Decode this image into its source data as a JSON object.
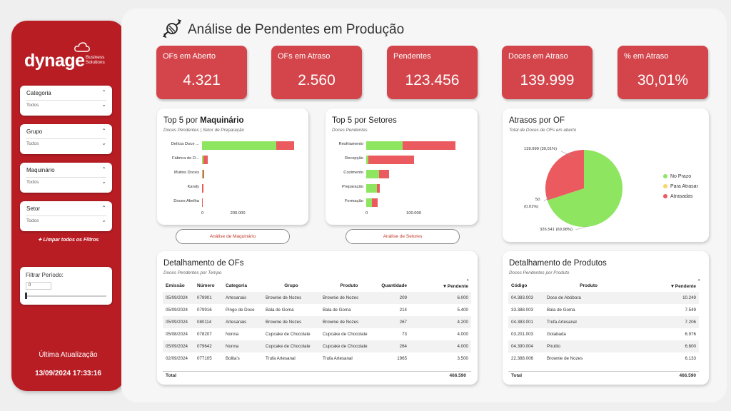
{
  "brand": {
    "name": "dynage",
    "sub1": "Business",
    "sub2": "Solutions"
  },
  "filters": [
    {
      "label": "Categoria",
      "value": "Todos"
    },
    {
      "label": "Grupo",
      "value": "Todos"
    },
    {
      "label": "Maquinário",
      "value": "Todos"
    },
    {
      "label": "Setor",
      "value": "Todos"
    }
  ],
  "clear_filters": "Limpar todos os Filtros",
  "period": {
    "label": "Filtrar Período:",
    "value": "0"
  },
  "update": {
    "label": "Última Atualização",
    "value": "13/09/2024 17:33:16"
  },
  "title": "Análise de Pendentes em Produção",
  "kpis": [
    {
      "label": "OFs em Aberto",
      "value": "4.321"
    },
    {
      "label": "OFs em Atraso",
      "value": "2.560"
    },
    {
      "label": "Pendentes",
      "value": "123.456"
    },
    {
      "label": "Doces em Atraso",
      "value": "139.999"
    },
    {
      "label": "% em Atraso",
      "value": "30,01%"
    }
  ],
  "maq": {
    "title_a": "Top 5 por ",
    "title_b": "Maquinário",
    "subtitle": "Doces Pendentes | Setor de Preparação",
    "button": "Análise de Maquinário",
    "ticks": [
      "0",
      "200.000"
    ]
  },
  "setores": {
    "title": "Top 5 por Setores",
    "subtitle": "Doces Pendentes",
    "button": "Análise de Setores",
    "ticks": [
      "0",
      "100.000"
    ]
  },
  "atrasos": {
    "title": "Atrasos por OF",
    "subtitle": "Total de Doces de OFs em aberto",
    "lbl_late": "139.999 (30,01%)",
    "lbl_mid1": "50",
    "lbl_mid2": "(0,01%)",
    "lbl_ok": "326.541 (69,98%)"
  },
  "ofs": {
    "title": "Detalhamento de OFs",
    "subtitle": "Doces Pendentes por Tempo",
    "headers": [
      "Emissão",
      "Número",
      "Categoria",
      "Grupo",
      "Produto",
      "Quantidade",
      "Pendente"
    ],
    "rows": [
      [
        "05/09/2024",
        "079901",
        "Artesanais",
        "Brownie de Nozes",
        "Brownie de Nozes",
        "209",
        "6.000"
      ],
      [
        "05/09/2024",
        "079916",
        "Pingo de Doce",
        "Bala de Goma",
        "Bala de Goma",
        "214",
        "5.400"
      ],
      [
        "05/09/2024",
        "080114",
        "Artesanais",
        "Brownie de Nozes",
        "Brownie de Nozes",
        "267",
        "4.200"
      ],
      [
        "05/08/2024",
        "078207",
        "Nonna",
        "Cupcake de Chocolate",
        "Cupcake de Chocolate",
        "73",
        "4.000"
      ],
      [
        "05/09/2024",
        "079642",
        "Nonna",
        "Cupcake de Chocolate",
        "Cupcake de Chocolate",
        "264",
        "4.000"
      ],
      [
        "02/09/2024",
        "077105",
        "Bolita's",
        "Trufa Artesanal",
        "Trufa Artesanal",
        "1965",
        "3.500"
      ]
    ],
    "total_label": "Total",
    "total_value": "466.590"
  },
  "produtos": {
    "title": "Detalhamento de Produtos",
    "subtitle": "Doces Pendentes por Produto",
    "headers": [
      "Código",
      "Produto",
      "Pendente"
    ],
    "rows": [
      [
        "04.383.003",
        "Doce de Abóbora",
        "10.249"
      ],
      [
        "33.388.003",
        "Bala de Goma",
        "7.549"
      ],
      [
        "04.383.001",
        "Trufa Artesanal",
        "7.206"
      ],
      [
        "03.201.003",
        "Goiabada",
        "6.976"
      ],
      [
        "04.390.004",
        "Pirulito",
        "6.600"
      ],
      [
        "22.388.006",
        "Brownie de Nozes",
        "6.133"
      ]
    ],
    "total_label": "Total",
    "total_value": "466.590"
  },
  "colors": {
    "on_time": "#8ee55f",
    "late": "#ea5a5e",
    "at_risk": "#f6d56a",
    "brand": "#b81d24",
    "kpi": "#d4454b"
  },
  "chart_data": [
    {
      "type": "bar",
      "title": "Top 5 por Maquinário",
      "subtitle": "Doces Pendentes | Setor de Preparação",
      "categories": [
        "Delícia Doce ...",
        "Fábrica de D...",
        "Muitos Doces",
        "Kandy",
        "Doces Abelha"
      ],
      "series": [
        {
          "values": [
            201000,
            4000,
            1000,
            500,
            300
          ]
        },
        {
          "values": [
            49000,
            12000,
            5000,
            2500,
            1500
          ]
        }
      ],
      "xlim": [
        0,
        250000
      ],
      "orientation": "horizontal"
    },
    {
      "type": "bar",
      "title": "Top 5 por Setores",
      "subtitle": "Doces Pendentes",
      "categories": [
        "Resfriamento",
        "Recepção",
        "Cozimento",
        "Preparação",
        "Formação"
      ],
      "series": [
        {
          "values": [
            75000,
            5000,
            26000,
            22000,
            12000
          ]
        },
        {
          "values": [
            109000,
            93000,
            21000,
            6000,
            12000
          ]
        }
      ],
      "xlim": [
        0,
        200000
      ],
      "orientation": "horizontal"
    },
    {
      "type": "pie",
      "title": "Atrasos por OF",
      "subtitle": "Total de Doces de OFs em aberto",
      "labels": [
        "No Prazo",
        "Para Atrasar",
        "Atrasadas"
      ],
      "values": [
        326541,
        50,
        139999
      ],
      "legend": "right"
    }
  ]
}
